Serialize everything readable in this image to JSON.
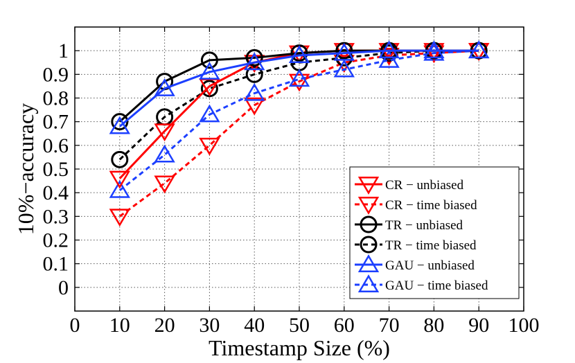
{
  "chart_data": {
    "type": "line",
    "xlabel": "Timestamp Size (%)",
    "ylabel": "10%−accuracy",
    "xlim": [
      0,
      100
    ],
    "ylim": [
      -0.1,
      1.1
    ],
    "xticks": [
      0,
      10,
      20,
      30,
      40,
      50,
      60,
      70,
      80,
      90,
      100
    ],
    "yticks": [
      0,
      0.1,
      0.2,
      0.3,
      0.4,
      0.5,
      0.6,
      0.7,
      0.8,
      0.9,
      1
    ],
    "xtick_labels": [
      "0",
      "10",
      "20",
      "30",
      "40",
      "50",
      "60",
      "70",
      "80",
      "90",
      "100"
    ],
    "ytick_labels": [
      "0",
      "0.1",
      "0.2",
      "0.3",
      "0.4",
      "0.5",
      "0.6",
      "0.7",
      "0.8",
      "0.9",
      "1"
    ],
    "grid": true,
    "legend_position": "bottom-right",
    "x": [
      10,
      20,
      30,
      40,
      50,
      60,
      70,
      80,
      90
    ],
    "series": [
      {
        "name": "CR − unbiased",
        "color": "#ff0000",
        "marker": "triangle-down",
        "dash": "solid",
        "values": [
          0.46,
          0.66,
          0.85,
          0.95,
          0.99,
          1.0,
          1.0,
          1.0,
          1.0
        ]
      },
      {
        "name": "CR − time biased",
        "color": "#ff0000",
        "marker": "triangle-down",
        "dash": "dashed",
        "values": [
          0.3,
          0.44,
          0.6,
          0.77,
          0.87,
          0.95,
          0.98,
          0.99,
          1.0
        ]
      },
      {
        "name": "TR − unbiased",
        "color": "#000000",
        "marker": "circle",
        "dash": "solid",
        "values": [
          0.7,
          0.87,
          0.96,
          0.97,
          0.99,
          1.0,
          1.0,
          1.0,
          1.0
        ]
      },
      {
        "name": "TR − time biased",
        "color": "#000000",
        "marker": "circle",
        "dash": "dashed",
        "values": [
          0.54,
          0.72,
          0.84,
          0.9,
          0.95,
          0.97,
          0.99,
          1.0,
          1.0
        ]
      },
      {
        "name": "GAU − unbiased",
        "color": "#1c3fff",
        "marker": "triangle-up",
        "dash": "solid",
        "values": [
          0.68,
          0.84,
          0.91,
          0.95,
          0.98,
          0.99,
          1.0,
          1.0,
          1.0
        ]
      },
      {
        "name": "GAU − time biased",
        "color": "#1c3fff",
        "marker": "triangle-up",
        "dash": "dashed",
        "values": [
          0.41,
          0.56,
          0.73,
          0.82,
          0.88,
          0.92,
          0.96,
          0.99,
          1.0
        ]
      }
    ]
  }
}
